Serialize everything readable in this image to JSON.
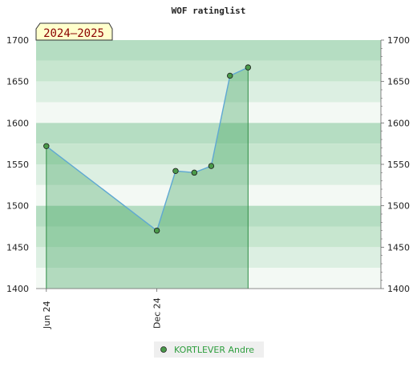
{
  "chart_data": {
    "type": "area",
    "title": "WOF ratinglist",
    "period_label": "2024–2025",
    "ylim": [
      1400,
      1700
    ],
    "y_ticks": [
      1400,
      1450,
      1500,
      1550,
      1600,
      1650,
      1700
    ],
    "y_tick_labels": [
      "1400",
      "1450",
      "1500",
      "1550",
      "1600",
      "1650",
      "1700"
    ],
    "x_range": [
      "2024-05-15",
      "2025-12-07"
    ],
    "x_ticks": [
      {
        "date": "2024-06-01",
        "label": "Jun 24"
      },
      {
        "date": "2024-12-01",
        "label": "Dec 24"
      }
    ],
    "series": [
      {
        "name": "KORTLEVER Andre",
        "color": "#5fa8d3",
        "marker_color": "#4a9a4a",
        "points": [
          {
            "x": "2024-06-01",
            "y": 1572
          },
          {
            "x": "2024-12-01",
            "y": 1470
          },
          {
            "x": "2025-01-01",
            "y": 1542
          },
          {
            "x": "2025-02-01",
            "y": 1540
          },
          {
            "x": "2025-03-01",
            "y": 1548
          },
          {
            "x": "2025-04-01",
            "y": 1657
          },
          {
            "x": "2025-05-01",
            "y": 1667
          }
        ]
      }
    ],
    "band_colors": {
      "light": [
        "#f2f8f2",
        "#dcede0",
        "#c5e4cb",
        "#b2dbbd"
      ],
      "mid": [
        "#b3dcbf",
        "#a5d6b3",
        "#99d0a8"
      ],
      "dark": [
        "#8fcb9f",
        "#7fc391",
        "#77bf8b"
      ]
    },
    "legend_placement": "bottom-center",
    "grid": true
  }
}
